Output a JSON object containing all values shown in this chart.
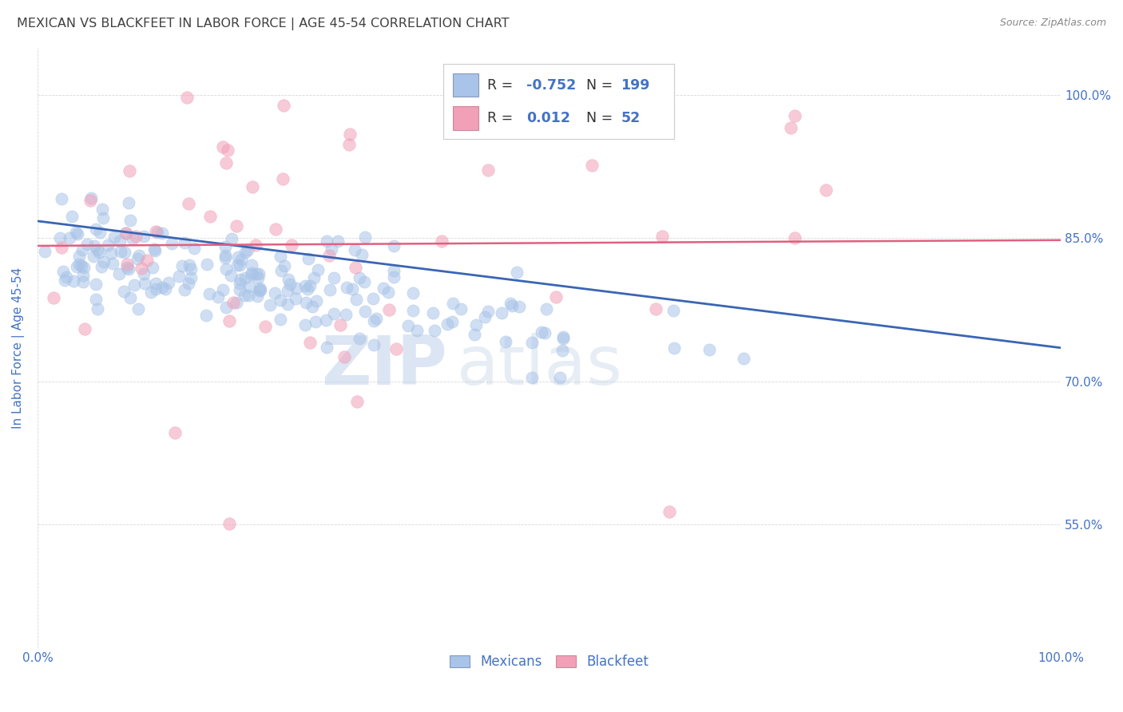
{
  "title": "MEXICAN VS BLACKFEET IN LABOR FORCE | AGE 45-54 CORRELATION CHART",
  "source": "Source: ZipAtlas.com",
  "ylabel": "In Labor Force | Age 45-54",
  "xlim": [
    0.0,
    1.0
  ],
  "ylim": [
    0.42,
    1.05
  ],
  "ytick_vals": [
    0.55,
    0.7,
    0.85,
    1.0
  ],
  "ytick_labels": [
    "55.0%",
    "70.0%",
    "85.0%",
    "100.0%"
  ],
  "mexican_color": "#a8c4e8",
  "blackfeet_color": "#f2a0b8",
  "mexican_R": -0.752,
  "mexican_N": 199,
  "blackfeet_R": 0.012,
  "blackfeet_N": 52,
  "mexican_line_color": "#3a65b5",
  "blackfeet_line_color": "#e06080",
  "watermark_zip": "ZIP",
  "watermark_atlas": "atlas",
  "background_color": "#ffffff",
  "grid_color": "#d8d8d8",
  "title_color": "#404040",
  "axis_label_color": "#4472c4",
  "legend_r_color": "#4472c4",
  "scatter_alpha": 0.55,
  "scatter_size": 120,
  "mex_line_y0": 0.868,
  "mex_line_y1": 0.735,
  "bft_line_y0": 0.842,
  "bft_line_y1": 0.848
}
